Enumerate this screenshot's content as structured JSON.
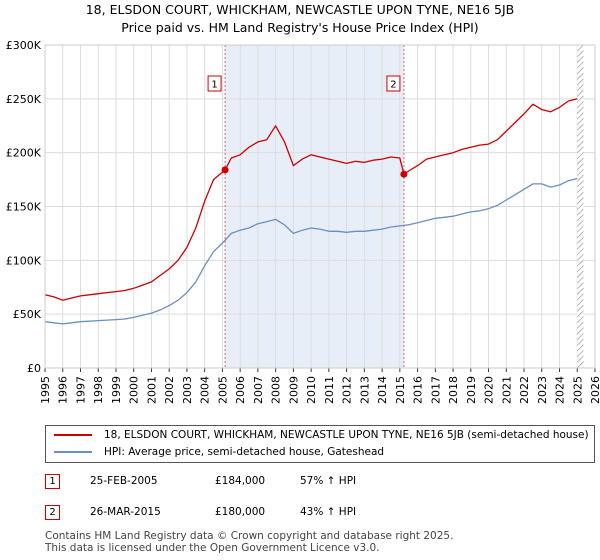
{
  "title_line1": "18, ELSDON COURT, WHICKHAM, NEWCASTLE UPON TYNE, NE16 5JB",
  "title_line2": "Price paid vs. HM Land Registry's House Price Index (HPI)",
  "colors": {
    "property": "#cc0000",
    "hpi": "#6a8fc0",
    "shade": "#e8eef8",
    "marker_line": "#dd6666",
    "grid": "#dddddd"
  },
  "legend": {
    "property_label": "18, ELSDON COURT, WHICKHAM, NEWCASTLE UPON TYNE, NE16 5JB (semi-detached house)",
    "hpi_label": "HPI: Average price, semi-detached house, Gateshead"
  },
  "sales": [
    {
      "num": "1",
      "date": "25-FEB-2005",
      "price": "£184,000",
      "hpi": "57% ↑ HPI",
      "year": 2005.15,
      "value": 184000
    },
    {
      "num": "2",
      "date": "26-MAR-2015",
      "price": "£180,000",
      "hpi": "43% ↑ HPI",
      "year": 2015.23,
      "value": 180000
    }
  ],
  "footer_line1": "Contains HM Land Registry data © Crown copyright and database right 2025.",
  "footer_line2": "This data is licensed under the Open Government Licence v3.0.",
  "chart_data": {
    "type": "line",
    "title": "18, ELSDON COURT, WHICKHAM, NEWCASTLE UPON TYNE, NE16 5JB — Price paid vs. HM Land Registry's House Price Index (HPI)",
    "xlabel": "",
    "ylabel": "",
    "xlim": [
      1995,
      2026
    ],
    "ylim": [
      0,
      300000
    ],
    "x_ticks": [
      "1995",
      "1996",
      "1997",
      "1998",
      "1999",
      "2000",
      "2001",
      "2002",
      "2003",
      "2004",
      "2005",
      "2006",
      "2007",
      "2008",
      "2009",
      "2010",
      "2011",
      "2012",
      "2013",
      "2014",
      "2015",
      "2016",
      "2017",
      "2018",
      "2019",
      "2020",
      "2021",
      "2022",
      "2023",
      "2024",
      "2025",
      "2026"
    ],
    "y_ticks": [
      {
        "value": 0,
        "label": "£0"
      },
      {
        "value": 50000,
        "label": "£50K"
      },
      {
        "value": 100000,
        "label": "£100K"
      },
      {
        "value": 150000,
        "label": "£150K"
      },
      {
        "value": 200000,
        "label": "£200K"
      },
      {
        "value": 250000,
        "label": "£250K"
      },
      {
        "value": 300000,
        "label": "£300K"
      }
    ],
    "shaded_region": [
      2005.15,
      2015.23
    ],
    "future_region_start": 2025.0,
    "series": [
      {
        "name": "18, ELSDON COURT, WHICKHAM, NEWCASTLE UPON TYNE, NE16 5JB (semi-detached house)",
        "x": [
          1995.0,
          1995.5,
          1996.0,
          1996.5,
          1997.0,
          1997.5,
          1998.0,
          1998.5,
          1999.0,
          1999.5,
          2000.0,
          2000.5,
          2001.0,
          2001.5,
          2002.0,
          2002.5,
          2003.0,
          2003.5,
          2004.0,
          2004.5,
          2005.15,
          2005.5,
          2006.0,
          2006.5,
          2007.0,
          2007.5,
          2008.0,
          2008.5,
          2009.0,
          2009.5,
          2010.0,
          2010.5,
          2011.0,
          2011.5,
          2012.0,
          2012.5,
          2013.0,
          2013.5,
          2014.0,
          2014.5,
          2015.0,
          2015.23,
          2015.5,
          2016.0,
          2016.5,
          2017.0,
          2017.5,
          2018.0,
          2018.5,
          2019.0,
          2019.5,
          2020.0,
          2020.5,
          2021.0,
          2021.5,
          2022.0,
          2022.5,
          2023.0,
          2023.5,
          2024.0,
          2024.5,
          2025.0
        ],
        "values": [
          68000,
          66000,
          63000,
          65000,
          67000,
          68000,
          69000,
          70000,
          71000,
          72000,
          74000,
          77000,
          80000,
          86000,
          92000,
          100000,
          112000,
          130000,
          155000,
          175000,
          184000,
          195000,
          198000,
          205000,
          210000,
          212000,
          225000,
          210000,
          188000,
          194000,
          198000,
          196000,
          194000,
          192000,
          190000,
          192000,
          191000,
          193000,
          194000,
          196000,
          195000,
          180000,
          183000,
          188000,
          194000,
          196000,
          198000,
          200000,
          203000,
          205000,
          207000,
          208000,
          212000,
          220000,
          228000,
          236000,
          245000,
          240000,
          238000,
          242000,
          248000,
          250000
        ]
      },
      {
        "name": "HPI: Average price, semi-detached house, Gateshead",
        "x": [
          1995.0,
          1995.5,
          1996.0,
          1996.5,
          1997.0,
          1997.5,
          1998.0,
          1998.5,
          1999.0,
          1999.5,
          2000.0,
          2000.5,
          2001.0,
          2001.5,
          2002.0,
          2002.5,
          2003.0,
          2003.5,
          2004.0,
          2004.5,
          2005.0,
          2005.5,
          2006.0,
          2006.5,
          2007.0,
          2007.5,
          2008.0,
          2008.5,
          2009.0,
          2009.5,
          2010.0,
          2010.5,
          2011.0,
          2011.5,
          2012.0,
          2012.5,
          2013.0,
          2013.5,
          2014.0,
          2014.5,
          2015.0,
          2015.5,
          2016.0,
          2016.5,
          2017.0,
          2017.5,
          2018.0,
          2018.5,
          2019.0,
          2019.5,
          2020.0,
          2020.5,
          2021.0,
          2021.5,
          2022.0,
          2022.5,
          2023.0,
          2023.5,
          2024.0,
          2024.5,
          2025.0
        ],
        "values": [
          43000,
          42000,
          41000,
          42000,
          43000,
          43500,
          44000,
          44500,
          45000,
          45500,
          47000,
          49000,
          51000,
          54000,
          58000,
          63000,
          70000,
          80000,
          95000,
          108000,
          116000,
          125000,
          128000,
          130000,
          134000,
          136000,
          138000,
          133000,
          125000,
          128000,
          130000,
          129000,
          127000,
          127000,
          126000,
          127000,
          127000,
          128000,
          129000,
          131000,
          132000,
          133000,
          135000,
          137000,
          139000,
          140000,
          141000,
          143000,
          145000,
          146000,
          148000,
          151000,
          156000,
          161000,
          166000,
          171000,
          171000,
          168000,
          170000,
          174000,
          176000
        ]
      }
    ]
  }
}
